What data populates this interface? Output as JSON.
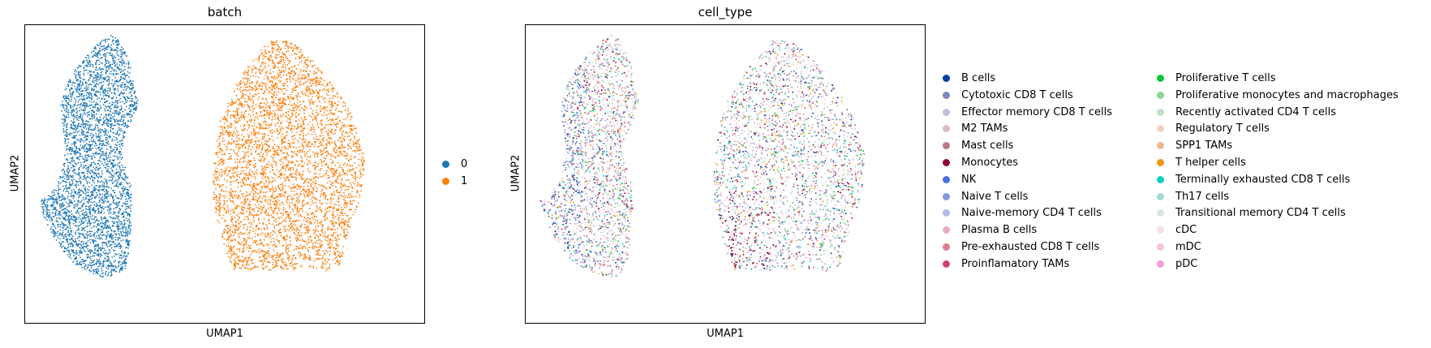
{
  "chart_data": [
    {
      "type": "scatter",
      "title": "batch",
      "xlabel": "UMAP1",
      "ylabel": "UMAP2",
      "grid": false,
      "legend_position": "right",
      "series": [
        {
          "name": "0",
          "color": "#1f77b4",
          "region": "left-cluster"
        },
        {
          "name": "1",
          "color": "#ff7f0e",
          "region": "right-cluster"
        }
      ]
    },
    {
      "type": "scatter",
      "title": "cell_type",
      "xlabel": "UMAP1",
      "ylabel": "UMAP2",
      "grid": false,
      "legend_position": "right",
      "series": [
        {
          "name": "B cells",
          "color": "#023fa5"
        },
        {
          "name": "Cytotoxic CD8 T cells",
          "color": "#7d87b9"
        },
        {
          "name": "Effector memory CD8 T cells",
          "color": "#bec1d4"
        },
        {
          "name": "M2 TAMs",
          "color": "#d6bcc0"
        },
        {
          "name": "Mast cells",
          "color": "#bb7784"
        },
        {
          "name": "Monocytes",
          "color": "#8e063b"
        },
        {
          "name": "NK",
          "color": "#4a6fe3"
        },
        {
          "name": "Naive T cells",
          "color": "#8595e1"
        },
        {
          "name": "Naive-memory CD4 T cells",
          "color": "#b5bbe3"
        },
        {
          "name": "Plasma B cells",
          "color": "#e6afb9"
        },
        {
          "name": "Pre-exhausted CD8 T cells",
          "color": "#e07b91"
        },
        {
          "name": "Proinflamatory TAMs",
          "color": "#d33f6a"
        },
        {
          "name": "Proliferative T cells",
          "color": "#11c638"
        },
        {
          "name": "Proliferative monocytes and macrophages",
          "color": "#8dd593"
        },
        {
          "name": "Recently activated CD4 T cells",
          "color": "#c6dec7"
        },
        {
          "name": "Regulatory T cells",
          "color": "#ead3c6"
        },
        {
          "name": "SPP1 TAMs",
          "color": "#f0b98d"
        },
        {
          "name": "T helper cells",
          "color": "#ef9708"
        },
        {
          "name": "Terminally exhausted CD8 T cells",
          "color": "#0fcfc0"
        },
        {
          "name": "Th17 cells",
          "color": "#9cded6"
        },
        {
          "name": "Transitional memory CD4 T cells",
          "color": "#d5eae7"
        },
        {
          "name": "cDC",
          "color": "#f3e1eb"
        },
        {
          "name": "mDC",
          "color": "#f6c4e1"
        },
        {
          "name": "pDC",
          "color": "#f79cd4"
        }
      ]
    }
  ]
}
